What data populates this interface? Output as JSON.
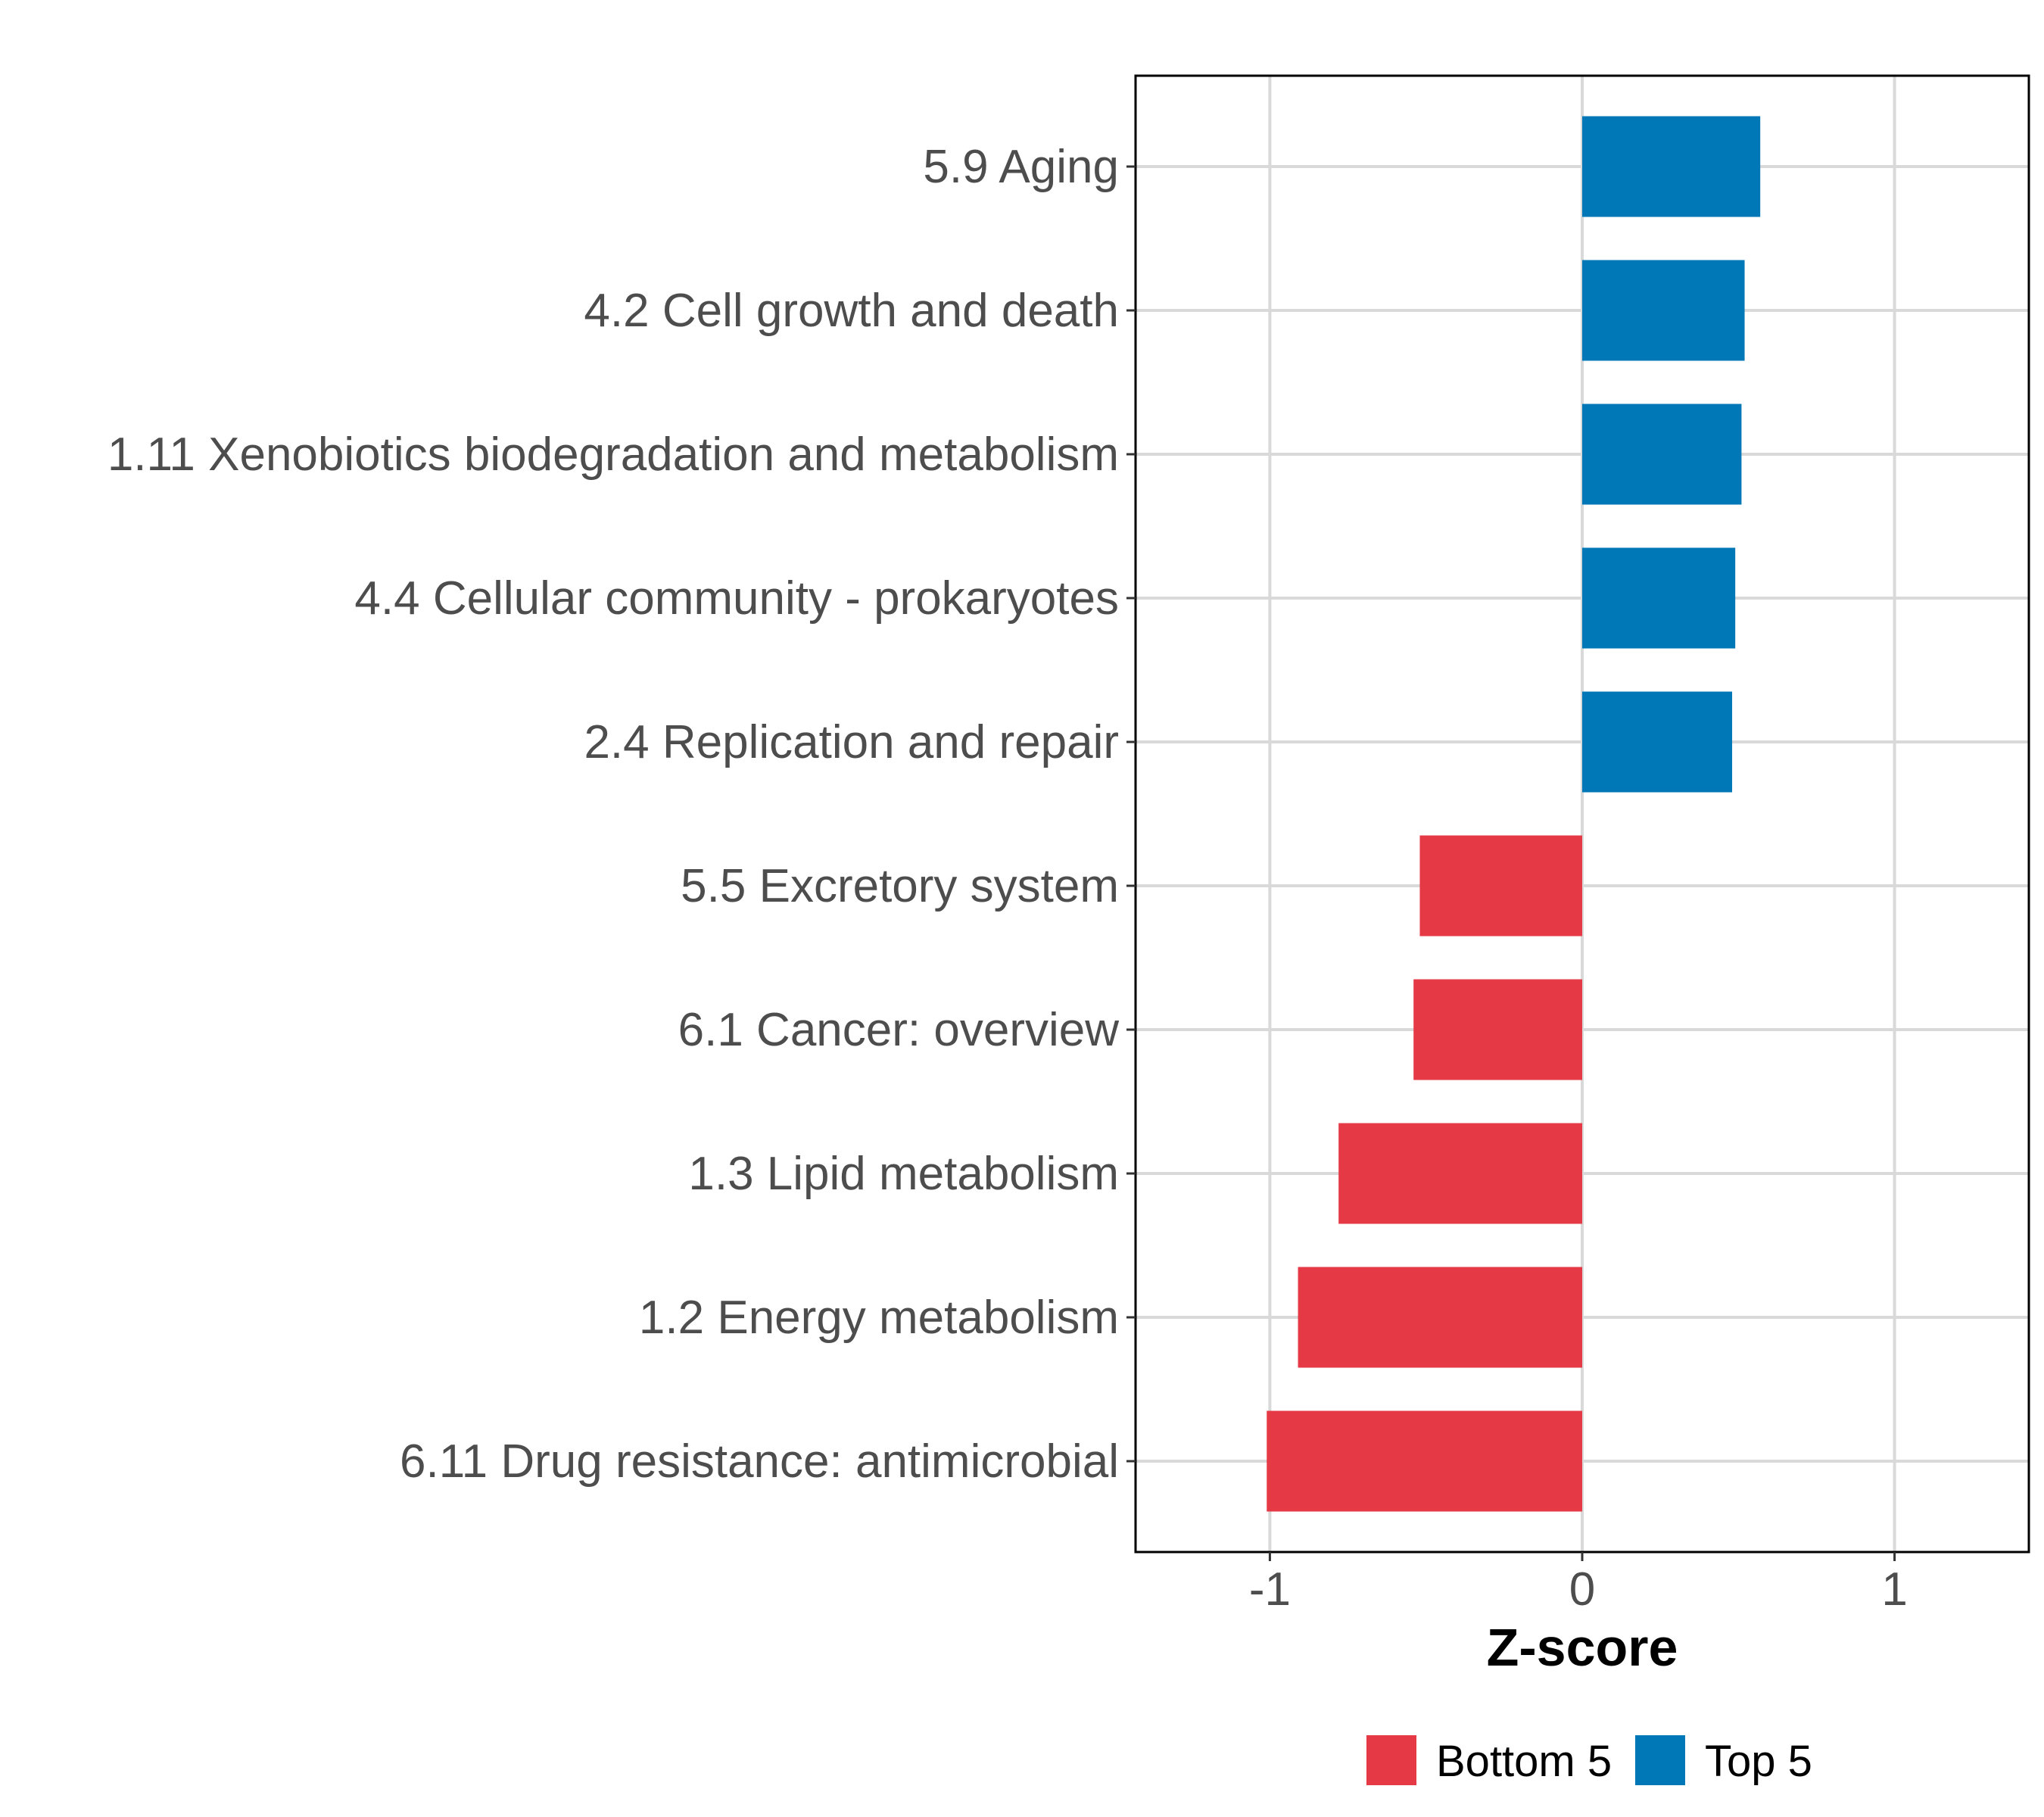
{
  "chart_data": {
    "type": "bar",
    "orientation": "horizontal",
    "title": "",
    "xlabel": "Z-score",
    "ylabel": "",
    "xlim": [
      -1.43,
      1.43
    ],
    "xticks": [
      -1,
      0,
      1
    ],
    "xtick_labels": [
      "-1",
      "0",
      "1"
    ],
    "grid": true,
    "legend_position": "bottom",
    "categories": [
      "5.9 Aging",
      "4.2 Cell growth and death",
      "1.11 Xenobiotics biodegradation and metabolism",
      "4.4 Cellular community - prokaryotes",
      "2.4 Replication and repair",
      "5.5 Excretory system",
      "6.1 Cancer: overview",
      "1.3 Lipid metabolism",
      "1.2 Energy metabolism",
      "6.11 Drug resistance: antimicrobial"
    ],
    "values": [
      0.57,
      0.52,
      0.51,
      0.49,
      0.48,
      -0.52,
      -0.54,
      -0.78,
      -0.91,
      -1.01
    ],
    "groups": [
      "Top 5",
      "Top 5",
      "Top 5",
      "Top 5",
      "Top 5",
      "Bottom 5",
      "Bottom 5",
      "Bottom 5",
      "Bottom 5",
      "Bottom 5"
    ],
    "legend": [
      {
        "label": "Bottom 5",
        "color": "#E63946"
      },
      {
        "label": "Top 5",
        "color": "#0077B6"
      }
    ]
  }
}
